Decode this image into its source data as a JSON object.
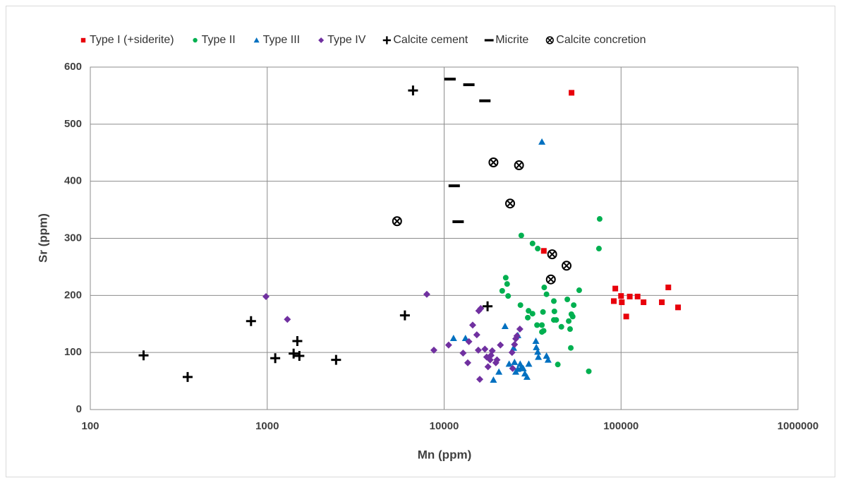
{
  "chart_data": {
    "type": "scatter",
    "xscale": "log",
    "grid": true,
    "xlabel": "Mn (ppm)",
    "ylabel": "Sr (ppm)",
    "xlim": [
      100,
      1000000
    ],
    "xticks": [
      100,
      1000,
      10000,
      100000,
      1000000
    ],
    "ylim": [
      0,
      600
    ],
    "yticks": [
      0,
      100,
      200,
      300,
      400,
      500,
      600
    ],
    "legend": "top",
    "series": [
      {
        "name": "Type I (+siderite)",
        "color": "#e8000b",
        "marker": "square",
        "x": [
          52500,
          36600,
          91000,
          92800,
          100000,
          101000,
          107000,
          112000,
          124000,
          134000,
          170000,
          185000,
          210000
        ],
        "values": [
          555,
          278,
          190,
          212,
          199,
          188,
          163,
          198,
          198,
          188,
          188,
          214,
          179
        ]
      },
      {
        "name": "Type II",
        "color": "#00b050",
        "marker": "circle",
        "x": [
          75700,
          75000,
          27300,
          31600,
          33800,
          22300,
          22700,
          23000,
          21300,
          27000,
          30000,
          31600,
          29700,
          33500,
          35700,
          36200,
          35700,
          36500,
          36800,
          37900,
          41700,
          42000,
          41700,
          43000,
          46000,
          43900,
          49700,
          50600,
          51500,
          52400,
          53300,
          54000,
          58000,
          52000,
          65700
        ],
        "values": [
          334,
          282,
          305,
          291,
          282,
          231,
          220,
          199,
          208,
          183,
          173,
          168,
          161,
          148,
          148,
          171,
          136,
          138,
          214,
          202,
          190,
          172,
          157,
          157,
          145,
          79,
          193,
          155,
          141,
          167,
          163,
          183,
          209,
          108,
          67
        ]
      },
      {
        "name": "Type III",
        "color": "#0070c0",
        "marker": "triangle",
        "x": [
          35700,
          11300,
          13200,
          22100,
          33000,
          33200,
          33800,
          34100,
          37900,
          38700,
          23300,
          20400,
          19000,
          25000,
          26100,
          26900,
          27400,
          28600,
          29400,
          30100,
          25400,
          24700,
          26100,
          28000
        ],
        "values": [
          469,
          125,
          125,
          146,
          120,
          109,
          101,
          92,
          94,
          87,
          80,
          66,
          52,
          83,
          71,
          80,
          74,
          63,
          57,
          80,
          66,
          108,
          130,
          72
        ]
      },
      {
        "name": "Type IV",
        "color": "#7030a0",
        "marker": "diamond",
        "x": [
          984,
          1300,
          7980,
          8750,
          10600,
          15700,
          16100,
          12800,
          13600,
          13800,
          14500,
          15300,
          15600,
          15900,
          17000,
          17400,
          17700,
          18200,
          18400,
          18700,
          19600,
          19900,
          20800,
          24200,
          25000,
          25400,
          25800,
          26800,
          24400
        ],
        "values": [
          198,
          158,
          202,
          104,
          113,
          173,
          177,
          99,
          82,
          119,
          148,
          131,
          104,
          53,
          106,
          92,
          75,
          87,
          95,
          103,
          82,
          87,
          113,
          100,
          114,
          124,
          129,
          141,
          72
        ]
      },
      {
        "name": "Calcite cement",
        "color": "#000000",
        "marker": "plus",
        "x": [
          200,
          355,
          810,
          1110,
          1410,
          1480,
          1520,
          2450,
          6000,
          6670,
          17600
        ],
        "values": [
          95,
          57,
          155,
          90,
          98,
          120,
          94,
          87,
          165,
          559,
          181
        ]
      },
      {
        "name": "Micrite",
        "color": "#000000",
        "marker": "dash",
        "x": [
          10800,
          13800,
          17000,
          11400,
          12000
        ],
        "values": [
          579,
          569,
          541,
          392,
          329
        ]
      },
      {
        "name": "Calcite concretion",
        "color": "#000000",
        "marker": "circle-x",
        "x": [
          5420,
          19000,
          26500,
          23600,
          40800,
          49200,
          40100
        ],
        "values": [
          330,
          433,
          428,
          361,
          272,
          252,
          228
        ]
      }
    ]
  }
}
